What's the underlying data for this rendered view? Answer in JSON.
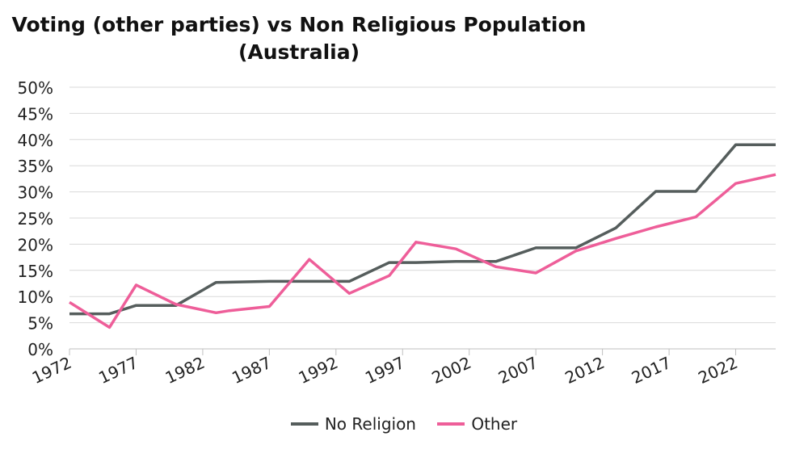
{
  "chart_data": {
    "type": "line",
    "title": "Voting (other parties) vs Non Religious Population",
    "subtitle": "(Australia)",
    "xlabel": "",
    "ylabel": "",
    "x_ticks": [
      "1972",
      "1977",
      "1982",
      "1987",
      "1992",
      "1997",
      "2002",
      "2007",
      "2012",
      "2017",
      "2022"
    ],
    "x_range": [
      1972,
      2025
    ],
    "ylim": [
      0,
      0.5
    ],
    "y_ticks": [
      0,
      0.05,
      0.1,
      0.15,
      0.2,
      0.25,
      0.3,
      0.35,
      0.4,
      0.45,
      0.5
    ],
    "y_tick_labels": [
      "0%",
      "5%",
      "10%",
      "15%",
      "20%",
      "25%",
      "30%",
      "35%",
      "40%",
      "45%",
      "50%"
    ],
    "grid": true,
    "legend_position": "bottom",
    "series": [
      {
        "name": "No Religion",
        "color": "#555d5c",
        "points": [
          [
            1972,
            0.067
          ],
          [
            1975,
            0.067
          ],
          [
            1977,
            0.083
          ],
          [
            1980,
            0.083
          ],
          [
            1983,
            0.127
          ],
          [
            1987,
            0.129
          ],
          [
            1990,
            0.129
          ],
          [
            1993,
            0.129
          ],
          [
            1996,
            0.165
          ],
          [
            1998,
            0.165
          ],
          [
            2001,
            0.167
          ],
          [
            2004,
            0.167
          ],
          [
            2007,
            0.193
          ],
          [
            2010,
            0.193
          ],
          [
            2013,
            0.231
          ],
          [
            2016,
            0.301
          ],
          [
            2019,
            0.301
          ],
          [
            2022,
            0.39
          ],
          [
            2025,
            0.39
          ]
        ]
      },
      {
        "name": "Other",
        "color": "#ee5e99",
        "points": [
          [
            1972,
            0.089
          ],
          [
            1975,
            0.041
          ],
          [
            1977,
            0.122
          ],
          [
            1980,
            0.085
          ],
          [
            1983,
            0.069
          ],
          [
            1984,
            0.073
          ],
          [
            1987,
            0.081
          ],
          [
            1990,
            0.171
          ],
          [
            1993,
            0.106
          ],
          [
            1996,
            0.14
          ],
          [
            1998,
            0.204
          ],
          [
            2001,
            0.191
          ],
          [
            2004,
            0.157
          ],
          [
            2007,
            0.145
          ],
          [
            2010,
            0.187
          ],
          [
            2013,
            0.211
          ],
          [
            2016,
            0.233
          ],
          [
            2019,
            0.252
          ],
          [
            2022,
            0.316
          ],
          [
            2025,
            0.333
          ]
        ]
      }
    ]
  }
}
